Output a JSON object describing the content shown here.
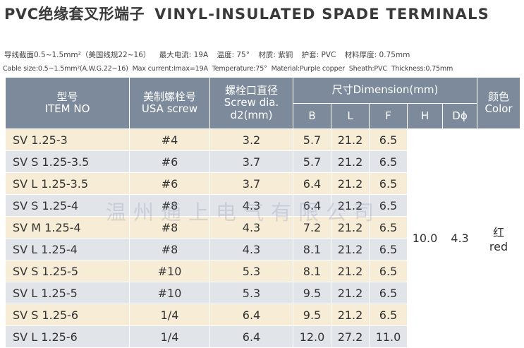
{
  "title": {
    "cn": "PVC绝缘套叉形端子",
    "en": "VINYL-INSULATED SPADE TERMINALS"
  },
  "specs_cn": [
    "导线截面0.5~1.5mm²（美国线规22~16）",
    "最大电流: 19A",
    "温度: 75°",
    "材质: 紫铜",
    "护套: PVC",
    "材料厚度: 0.75mm"
  ],
  "specs_en": [
    "Cable size:0.5~1.5mm²(A.W.G.22~16)",
    "Max current:Imax=19A",
    "Temperature:75°",
    "Material:Purple copper",
    "Sheath:PVC",
    "Thickness:0.75mm"
  ],
  "headers": {
    "item_cn": "型号",
    "item_en": "ITEM NO",
    "usa_cn": "美制螺栓号",
    "usa_en": "USA screw",
    "screw_cn": "螺栓口直径",
    "screw_en": "Screw dia.",
    "screw_unit": "d2(mm)",
    "dim": "尺寸Dimension(mm)",
    "color_cn": "颜色",
    "color_en": "Color",
    "b": "B",
    "l": "L",
    "f": "F",
    "h": "H",
    "d": "Dϕ"
  },
  "rows": [
    {
      "item": "SV 1.25-3",
      "usa": "#4",
      "d2": "3.2",
      "b": "5.7",
      "l": "21.2",
      "f": "6.5"
    },
    {
      "item": "SV S 1.25-3.5",
      "usa": "#6",
      "d2": "3.7",
      "b": "5.7",
      "l": "21.2",
      "f": "6.5"
    },
    {
      "item": "SV L 1.25-3.5",
      "usa": "#6",
      "d2": "3.7",
      "b": "6.4",
      "l": "21.2",
      "f": "6.5"
    },
    {
      "item": "SV S 1.25-4",
      "usa": "#8",
      "d2": "4.3",
      "b": "6.4",
      "l": "21.2",
      "f": "6.5"
    },
    {
      "item": "SV M 1.25-4",
      "usa": "#8",
      "d2": "4.3",
      "b": "7.2",
      "l": "21.2",
      "f": "6.5"
    },
    {
      "item": "SV L 1.25-4",
      "usa": "#8",
      "d2": "4.3",
      "b": "8.1",
      "l": "21.2",
      "f": "6.5"
    },
    {
      "item": "SV S 1.25-5",
      "usa": "#10",
      "d2": "5.3",
      "b": "8.1",
      "l": "21.2",
      "f": "6.5"
    },
    {
      "item": "SV L 1.25-5",
      "usa": "#10",
      "d2": "5.3",
      "b": "9.5",
      "l": "21.2",
      "f": "6.5"
    },
    {
      "item": "SV S 1.25-6",
      "usa": "1/4",
      "d2": "6.4",
      "b": "9.5",
      "l": "21.2",
      "f": "6.5"
    },
    {
      "item": "SV L 1.25-6",
      "usa": "1/4",
      "d2": "6.4",
      "b": "12.0",
      "l": "27.2",
      "f": "11.0"
    }
  ],
  "common": {
    "h": "10.0",
    "d": "4.3",
    "color_cn": "红",
    "color_en": "red"
  },
  "watermark": "温州通上电气有限公司",
  "colors": {
    "header_bg": "#7c8a9b",
    "row_odd": "#f7ecd5",
    "row_even": "#e1e4e8"
  }
}
